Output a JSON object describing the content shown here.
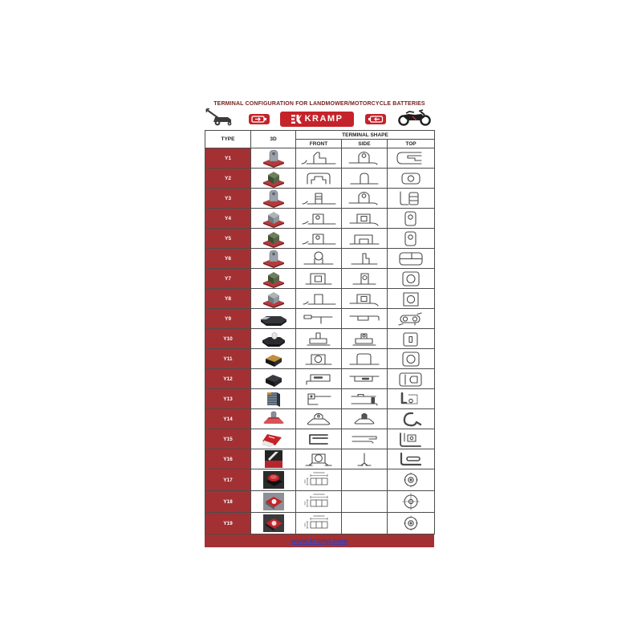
{
  "title": "TERMINAL CONFIGURATION FOR LANDMOWER/MOTORCYCLE BATTERIES",
  "brand": {
    "name": "KRAMP"
  },
  "colors": {
    "brick_red": "#a33134",
    "bright_red": "#c5232a",
    "title_maroon": "#76231f",
    "link_blue": "#3c3cae",
    "line_gray": "#4a4a4a"
  },
  "icons": {
    "left_vehicle": "lawnmower-icon",
    "left_badge": "battery-icon",
    "center_logo": "kramp-logo",
    "right_badge": "battery-icon",
    "right_vehicle": "motorcycle-icon"
  },
  "table": {
    "headers": {
      "type": "TYPE",
      "three_d": "3D",
      "terminal_shape": "TERMINAL SHAPE",
      "front": "FRONT",
      "side": "SIDE",
      "top": "TOP"
    },
    "rows": [
      {
        "type": "Y1",
        "model": "gray-post-red-base",
        "front": "blade-post",
        "side": "arch-hole",
        "top": "c-step-bracket"
      },
      {
        "type": "Y2",
        "model": "green-cube-red-base",
        "front": "rounded-notch",
        "side": "arch-plain",
        "top": "rounded-rect-circle"
      },
      {
        "type": "Y3",
        "model": "gray-post-red-base",
        "front": "threaded-post",
        "side": "arch-hole",
        "top": "split-rect-bracket"
      },
      {
        "type": "Y4",
        "model": "gray-cube-red-base",
        "front": "post-hole",
        "side": "square-in-square",
        "top": "rounded-vrect-circle"
      },
      {
        "type": "Y5",
        "model": "green-cube-red-base",
        "front": "post-hole",
        "side": "notch-bracket",
        "top": "rounded-vrect-circle"
      },
      {
        "type": "Y6",
        "model": "gray-post-red-base",
        "front": "keyhole-post",
        "side": "step-post",
        "top": "divided-rounded-rect"
      },
      {
        "type": "Y7",
        "model": "green-cube-red-base",
        "front": "square-in-square-base",
        "side": "post-hole-tall",
        "top": "rounded-square-big-circle"
      },
      {
        "type": "Y8",
        "model": "gray-cube-red-base",
        "front": "plain-post",
        "side": "square-in-square",
        "top": "square-big-circle"
      },
      {
        "type": "Y9",
        "model": "flat-black-box",
        "front": "flat-tab",
        "side": "flat-slot",
        "top": "chain-link"
      },
      {
        "type": "Y10",
        "model": "black-box-white-post",
        "front": "t-post",
        "side": "post-hole-on-base",
        "top": "rounded-square-slot"
      },
      {
        "type": "Y11",
        "model": "black-wedge-gold",
        "front": "square-big-hole-base",
        "side": "arch-wide",
        "top": "rounded-square-big-circle"
      },
      {
        "type": "Y12",
        "model": "black-wedge",
        "front": "connector-pin",
        "side": "flat-slot-bar",
        "top": "spanner-outline"
      },
      {
        "type": "Y13",
        "model": "striped-box",
        "front": "bracket-tab",
        "side": "bar-pin",
        "top": "corner-circle"
      },
      {
        "type": "Y14",
        "model": "bolt-red-base",
        "front": "bolt-front",
        "side": "bolt-side",
        "top": "bold-blob"
      },
      {
        "type": "Y15",
        "model": "red-plate",
        "front": "c-bar",
        "side": "z-bracket",
        "top": "nested-c"
      },
      {
        "type": "Y16",
        "model": "photo-dark-red-stripe",
        "front": "square-big-hole-splay",
        "side": "pin-splay",
        "top": "l-slot"
      },
      {
        "type": "Y17",
        "model": "photo-red-knob-dark",
        "front": "dimension-drawing",
        "side": "empty",
        "top": "washer"
      },
      {
        "type": "Y18",
        "model": "photo-red-pad-gray",
        "front": "dimension-drawing",
        "side": "empty",
        "top": "washer-crosshair"
      },
      {
        "type": "Y19",
        "model": "photo-red-pad-dark",
        "front": "dimension-drawing",
        "side": "empty",
        "top": "washer"
      }
    ]
  },
  "footer": {
    "link_text": "www.kramp.com"
  }
}
